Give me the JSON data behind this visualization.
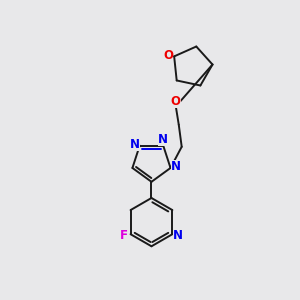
{
  "bg_color": "#e8e8ea",
  "bond_color": "#1a1a1a",
  "N_color": "#0000ee",
  "O_color": "#ee0000",
  "F_color": "#dd00dd",
  "bond_width": 1.4,
  "font_size": 8.5,
  "xlim": [
    0,
    10
  ],
  "ylim": [
    0,
    10
  ]
}
